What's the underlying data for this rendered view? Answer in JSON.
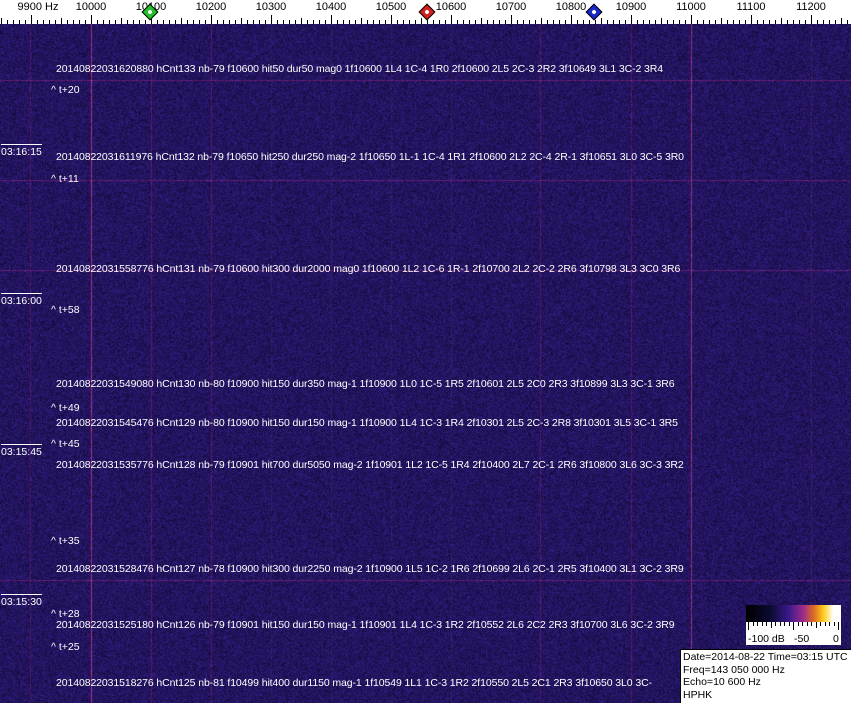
{
  "axis": {
    "unit_label": "9900 Hz",
    "ticks": [
      "10000",
      "10100",
      "10200",
      "10300",
      "10400",
      "10500",
      "10600",
      "10700",
      "10800",
      "10900",
      "11000",
      "11100",
      "11200"
    ],
    "markers": [
      {
        "name": "green-marker",
        "freq_hz": 10100,
        "color": "#22c02a"
      },
      {
        "name": "red-marker",
        "freq_hz": 10562,
        "color": "#d02020"
      },
      {
        "name": "blue-marker",
        "freq_hz": 10840,
        "color": "#1a28c8"
      }
    ]
  },
  "colors": {
    "background": "#1c1260",
    "noise_dark": "#0c0830",
    "line": "#c84070"
  },
  "time_labels": [
    "03:16:15",
    "03:16:00",
    "03:15:45",
    "03:15:30"
  ],
  "time_offsets": [
    "^ t+20",
    "^ t+11",
    "^ t+58",
    "^ t+49",
    "^ t+45",
    "^ t+35",
    "^ t+28",
    "^ t+25"
  ],
  "events": [
    "20140822031620880 hCnt133 nb-79 f10600 hit50 dur50 mag0 1f10600 1L4 1C-4 1R0 2f10600 2L5 2C-3 2R2 3f10649 3L1 3C-2 3R4",
    "20140822031611976 hCnt132 nb-79 f10650 hit250 dur250 mag-2 1f10650 1L-1 1C-4 1R1 2f10600 2L2 2C-4 2R-1 3f10651 3L0 3C-5 3R0",
    "20140822031558776 hCnt131 nb-79 f10600 hit300 dur2000 mag0 1f10600 1L2 1C-6 1R-1 2f10700 2L2 2C-2 2R6 3f10798 3L3 3C0 3R6",
    "20140822031549080 hCnt130 nb-80 f10900 hit150 dur350 mag-1 1f10900 1L0 1C-5 1R5 2f10601 2L5 2C0 2R3 3f10899 3L3 3C-1 3R6",
    "20140822031545476 hCnt129 nb-80 f10900 hit150 dur150 mag-1 1f10900 1L4 1C-3 1R4 2f10301 2L5 2C-3 2R8 3f10301 3L5 3C-1 3R5",
    "20140822031535776 hCnt128 nb-79 f10901 hit700 dur5050 mag-2 1f10901 1L2 1C-5 1R4 2f10400 2L7 2C-1 2R6 3f10800 3L6 3C-3 3R2",
    "20140822031528476 hCnt127 nb-78 f10900 hit300 dur2250 mag-2 1f10900 1L5 1C-2 1R6 2f10699 2L6 2C-1 2R5 3f10400 3L1 3C-2 3R9",
    "20140822031525180 hCnt126 nb-79 f10901 hit150 dur150 mag-1 1f10901 1L4 1C-3 1R2 2f10552 2L6 2C2 2R3 3f10700 3L6 3C-2 3R9",
    "20140822031518276 hCnt125 nb-81 f10499 hit400 dur1150 mag-1 1f10549 1L1 1C-3 1R2 2f10550 2L5 2C1 2R3 3f10650 3L0 3C-"
  ],
  "colorbar": {
    "labels": [
      "-100 dB",
      "-50",
      "0"
    ]
  },
  "info": {
    "date_time": "Date=2014-08-22 Time=03:15 UTC",
    "freq": "Freq=143 050 000 Hz",
    "echo": "Echo=10 600 Hz",
    "station": "HPHK"
  }
}
